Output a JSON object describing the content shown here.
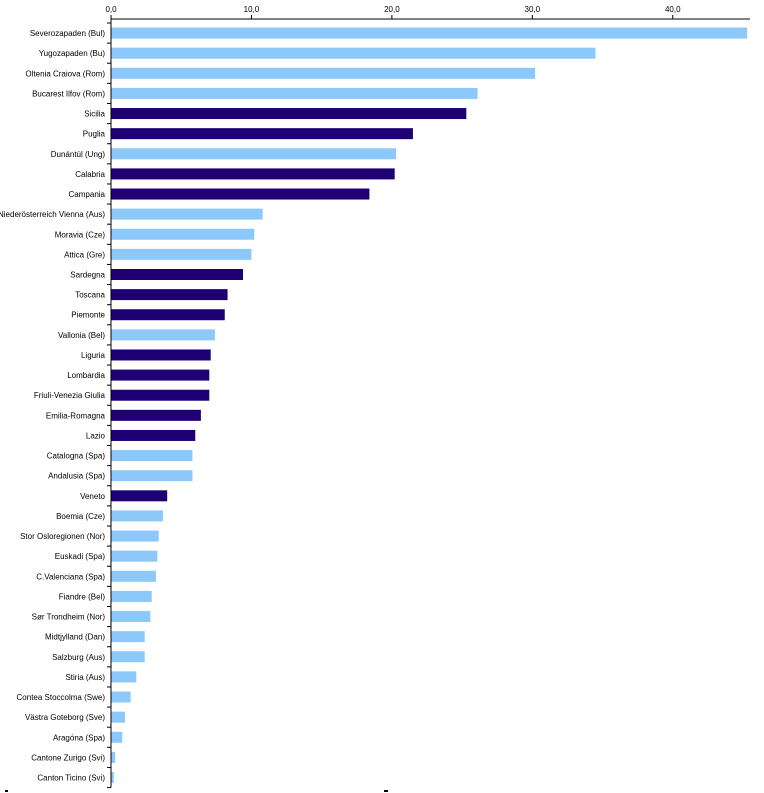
{
  "chart_data": {
    "type": "bar",
    "orientation": "horizontal",
    "xlim": [
      0,
      45.5
    ],
    "x_ticks": [
      {
        "value": 0,
        "label": "0,0"
      },
      {
        "value": 10,
        "label": "10,0"
      },
      {
        "value": 20,
        "label": "20,0"
      },
      {
        "value": 30,
        "label": "30,0"
      },
      {
        "value": 40,
        "label": "40,0"
      }
    ],
    "grid": false,
    "colors": {
      "non_italian": "#8cc8fa",
      "italian": "#1e0074"
    },
    "categories": [
      {
        "label": "Severozapaden (Bul)",
        "value": 45.3,
        "group": "non_italian"
      },
      {
        "label": "Yugozapaden (Bu)",
        "value": 34.5,
        "group": "non_italian"
      },
      {
        "label": "Oltenia Craiova (Rom)",
        "value": 30.2,
        "group": "non_italian"
      },
      {
        "label": "Bucarest Ilfov (Rom)",
        "value": 26.1,
        "group": "non_italian"
      },
      {
        "label": "Sicilia",
        "value": 25.3,
        "group": "italian"
      },
      {
        "label": "Puglia",
        "value": 21.5,
        "group": "italian"
      },
      {
        "label": "Dunántúl (Ung)",
        "value": 20.3,
        "group": "non_italian"
      },
      {
        "label": "Calabria",
        "value": 20.2,
        "group": "italian"
      },
      {
        "label": "Campania",
        "value": 18.4,
        "group": "italian"
      },
      {
        "label": "Niederösterreich Vienna (Aus)",
        "value": 10.8,
        "group": "non_italian"
      },
      {
        "label": "Moravia (Cze)",
        "value": 10.2,
        "group": "non_italian"
      },
      {
        "label": "Attica (Gre)",
        "value": 10.0,
        "group": "non_italian"
      },
      {
        "label": "Sardegna",
        "value": 9.4,
        "group": "italian"
      },
      {
        "label": "Toscana",
        "value": 8.3,
        "group": "italian"
      },
      {
        "label": "Piemonte",
        "value": 8.1,
        "group": "italian"
      },
      {
        "label": "Vallonia (Bel)",
        "value": 7.4,
        "group": "non_italian"
      },
      {
        "label": "Liguria",
        "value": 7.1,
        "group": "italian"
      },
      {
        "label": "Lombardia",
        "value": 7.0,
        "group": "italian"
      },
      {
        "label": "Friuli-Venezia Giulia",
        "value": 7.0,
        "group": "italian"
      },
      {
        "label": "Emilia-Romagna",
        "value": 6.4,
        "group": "italian"
      },
      {
        "label": "Lazio",
        "value": 6.0,
        "group": "italian"
      },
      {
        "label": "Catalogna (Spa)",
        "value": 5.8,
        "group": "non_italian"
      },
      {
        "label": "Andalusia (Spa)",
        "value": 5.8,
        "group": "non_italian"
      },
      {
        "label": "Veneto",
        "value": 4.0,
        "group": "italian"
      },
      {
        "label": "Boemia (Cze)",
        "value": 3.7,
        "group": "non_italian"
      },
      {
        "label": "Stor Osloregionen (Nor)",
        "value": 3.4,
        "group": "non_italian"
      },
      {
        "label": "Euskadi (Spa)",
        "value": 3.3,
        "group": "non_italian"
      },
      {
        "label": "C.Valenciana (Spa)",
        "value": 3.2,
        "group": "non_italian"
      },
      {
        "label": "Fiandre (Bel)",
        "value": 2.9,
        "group": "non_italian"
      },
      {
        "label": "Sør Trondheim (Nor)",
        "value": 2.8,
        "group": "non_italian"
      },
      {
        "label": "Midtjylland (Dan)",
        "value": 2.4,
        "group": "non_italian"
      },
      {
        "label": "Salzburg (Aus)",
        "value": 2.4,
        "group": "non_italian"
      },
      {
        "label": "Stiria (Aus)",
        "value": 1.8,
        "group": "non_italian"
      },
      {
        "label": "Contea Stoccolma (Swe)",
        "value": 1.4,
        "group": "non_italian"
      },
      {
        "label": "Västra Goteborg (Sve)",
        "value": 1.0,
        "group": "non_italian"
      },
      {
        "label": "Aragóna (Spa)",
        "value": 0.8,
        "group": "non_italian"
      },
      {
        "label": "Cantone Zurigo (Svi)",
        "value": 0.3,
        "group": "non_italian"
      },
      {
        "label": "Canton Ticino (Svi)",
        "value": 0.2,
        "group": "non_italian"
      }
    ]
  }
}
